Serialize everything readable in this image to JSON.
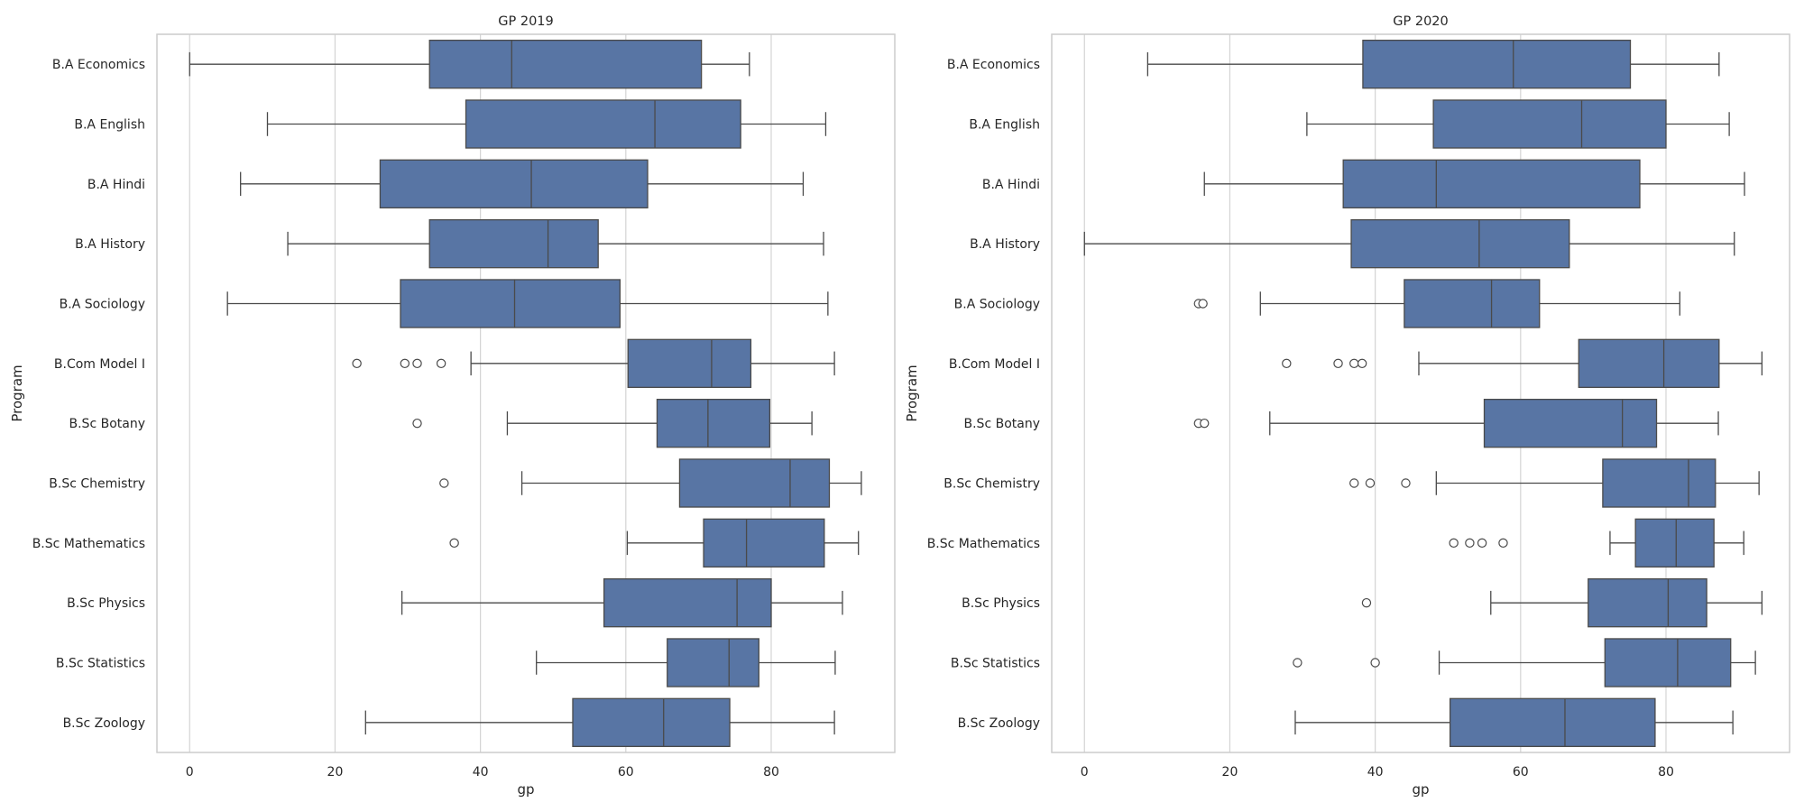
{
  "chart_data": [
    {
      "type": "boxplot",
      "title": "GP 2019",
      "xlabel": "gp",
      "ylabel": "Program",
      "xlim": [
        -4.5,
        97
      ],
      "xticks": [
        0,
        20,
        40,
        60,
        80
      ],
      "grid": "vertical",
      "box_color": "#5875a4",
      "categories": [
        "B.A Economics",
        "B.A English",
        "B.A Hindi",
        "B.A History",
        "B.A Sociology",
        "B.Com Model I",
        "B.Sc Botany",
        "B.Sc Chemistry",
        "B.Sc Mathematics",
        "B.Sc Physics",
        "B.Sc Statistics",
        "B.Sc Zoology"
      ],
      "boxes": [
        {
          "category": "B.A Economics",
          "whislo": 0,
          "q1": 33,
          "med": 44.3,
          "q3": 70.4,
          "whishi": 77,
          "fliers": []
        },
        {
          "category": "B.A English",
          "whislo": 10.7,
          "q1": 38,
          "med": 64,
          "q3": 75.8,
          "whishi": 87.5,
          "fliers": []
        },
        {
          "category": "B.A Hindi",
          "whislo": 7,
          "q1": 26.2,
          "med": 47,
          "q3": 63,
          "whishi": 84.4,
          "fliers": []
        },
        {
          "category": "B.A History",
          "whislo": 13.5,
          "q1": 33,
          "med": 49.3,
          "q3": 56.2,
          "whishi": 87.2,
          "fliers": []
        },
        {
          "category": "B.A Sociology",
          "whislo": 5.2,
          "q1": 29,
          "med": 44.7,
          "q3": 59.2,
          "whishi": 87.8,
          "fliers": []
        },
        {
          "category": "B.Com Model I",
          "whislo": 38.7,
          "q1": 60.3,
          "med": 71.8,
          "q3": 77.2,
          "whishi": 88.7,
          "fliers": [
            23,
            29.6,
            31.3,
            34.6
          ]
        },
        {
          "category": "B.Sc Botany",
          "whislo": 43.7,
          "q1": 64.3,
          "med": 71.3,
          "q3": 79.8,
          "whishi": 85.6,
          "fliers": [
            31.3
          ]
        },
        {
          "category": "B.Sc Chemistry",
          "whislo": 45.7,
          "q1": 67.4,
          "med": 82.6,
          "q3": 88,
          "whishi": 92.4,
          "fliers": [
            35
          ]
        },
        {
          "category": "B.Sc Mathematics",
          "whislo": 60.2,
          "q1": 70.7,
          "med": 76.6,
          "q3": 87.3,
          "whishi": 92,
          "fliers": [
            36.4
          ]
        },
        {
          "category": "B.Sc Physics",
          "whislo": 29.2,
          "q1": 57,
          "med": 75.3,
          "q3": 80,
          "whishi": 89.8,
          "fliers": []
        },
        {
          "category": "B.Sc Statistics",
          "whislo": 47.7,
          "q1": 65.7,
          "med": 74.2,
          "q3": 78.3,
          "whishi": 88.8,
          "fliers": []
        },
        {
          "category": "B.Sc Zoology",
          "whislo": 24.2,
          "q1": 52.7,
          "med": 65.2,
          "q3": 74.3,
          "whishi": 88.7,
          "fliers": []
        }
      ]
    },
    {
      "type": "boxplot",
      "title": "GP 2020",
      "xlabel": "gp",
      "ylabel": "Program",
      "xlim": [
        -4.5,
        97
      ],
      "xticks": [
        0,
        20,
        40,
        60,
        80
      ],
      "grid": "vertical",
      "box_color": "#5875a4",
      "categories": [
        "B.A Economics",
        "B.A English",
        "B.A Hindi",
        "B.A History",
        "B.A Sociology",
        "B.Com Model I",
        "B.Sc Botany",
        "B.Sc Chemistry",
        "B.Sc Mathematics",
        "B.Sc Physics",
        "B.Sc Statistics",
        "B.Sc Zoology"
      ],
      "boxes": [
        {
          "category": "B.A Economics",
          "whislo": 8.7,
          "q1": 38.3,
          "med": 59,
          "q3": 75.1,
          "whishi": 87.3,
          "fliers": []
        },
        {
          "category": "B.A English",
          "whislo": 30.6,
          "q1": 48,
          "med": 68.4,
          "q3": 80,
          "whishi": 88.7,
          "fliers": []
        },
        {
          "category": "B.A Hindi",
          "whislo": 16.5,
          "q1": 35.6,
          "med": 48.4,
          "q3": 76.4,
          "whishi": 90.8,
          "fliers": []
        },
        {
          "category": "B.A History",
          "whislo": 0,
          "q1": 36.7,
          "med": 54.3,
          "q3": 66.7,
          "whishi": 89.4,
          "fliers": []
        },
        {
          "category": "B.A Sociology",
          "whislo": 24.2,
          "q1": 44,
          "med": 56,
          "q3": 62.6,
          "whishi": 81.9,
          "fliers": [
            15.7,
            16.3
          ]
        },
        {
          "category": "B.Com Model I",
          "whislo": 46,
          "q1": 68,
          "med": 79.7,
          "q3": 87.3,
          "whishi": 93.2,
          "fliers": [
            27.8,
            34.9,
            37.1,
            38.2
          ]
        },
        {
          "category": "B.Sc Botany",
          "whislo": 25.5,
          "q1": 55,
          "med": 74,
          "q3": 78.7,
          "whishi": 87.2,
          "fliers": [
            15.7,
            16.5
          ]
        },
        {
          "category": "B.Sc Chemistry",
          "whislo": 48.4,
          "q1": 71.3,
          "med": 83.1,
          "q3": 86.8,
          "whishi": 92.8,
          "fliers": [
            37.1,
            39.3,
            44.2
          ]
        },
        {
          "category": "B.Sc Mathematics",
          "whislo": 72.3,
          "q1": 75.8,
          "med": 81.4,
          "q3": 86.6,
          "whishi": 90.7,
          "fliers": [
            50.8,
            53,
            54.7,
            57.6
          ]
        },
        {
          "category": "B.Sc Physics",
          "whislo": 55.9,
          "q1": 69.3,
          "med": 80.3,
          "q3": 85.6,
          "whishi": 93.2,
          "fliers": [
            38.8
          ]
        },
        {
          "category": "B.Sc Statistics",
          "whislo": 48.8,
          "q1": 71.6,
          "med": 81.6,
          "q3": 88.9,
          "whishi": 92.3,
          "fliers": [
            29.3,
            40
          ]
        },
        {
          "category": "B.Sc Zoology",
          "whislo": 29,
          "q1": 50.3,
          "med": 66.1,
          "q3": 78.5,
          "whishi": 89.2,
          "fliers": []
        }
      ]
    }
  ]
}
